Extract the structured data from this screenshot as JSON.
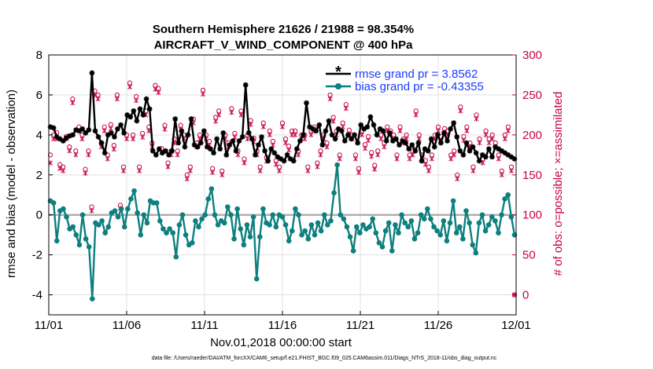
{
  "chart_data": {
    "type": "line",
    "title": "Southern Hemisphere 21626 / 21988 = 98.354%",
    "subtitle": "AIRCRAFT_V_WIND_COMPONENT @ 400 hPa",
    "xlabel": "Nov.01,2018 00:00:00 start",
    "ylabel": "rmse and bias (model - observation)",
    "y2label": "# of obs: o=possible; ×=assimilated",
    "footnote": "data file: /Users/raeder/DAI/ATM_forcXX/CAM6_setup/f.e21.FHIST_BGC.f09_025.CAM6assim.011/Diags_NTrS_2018-11/obs_diag_output.nc",
    "xlim": [
      0,
      30
    ],
    "ylim": [
      -5,
      8
    ],
    "y2lim": [
      -25,
      300
    ],
    "xticks": [
      0,
      5,
      10,
      15,
      20,
      25,
      30
    ],
    "xticklabels": [
      "11/01",
      "11/06",
      "11/11",
      "11/16",
      "11/21",
      "11/26",
      "12/01"
    ],
    "yticks": [
      -4,
      -2,
      0,
      2,
      4,
      6,
      8
    ],
    "y2ticks": [
      0,
      50,
      100,
      150,
      200,
      250,
      300
    ],
    "colors": {
      "rmse": "#000000",
      "bias": "#0e7f7f",
      "obs": "#c8004a",
      "zero_line": "#b0b0b0",
      "legend_text": "#1a3dff"
    },
    "series": [
      {
        "name": "rmse grand pr = 3.8562",
        "axis": "left",
        "marker": "asterisk",
        "values": [
          4.4,
          4.35,
          3.9,
          3.8,
          3.7,
          3.85,
          3.95,
          4.0,
          4.25,
          4.2,
          4.3,
          4.1,
          4.25,
          7.1,
          4.2,
          3.9,
          3.6,
          3.1,
          4.0,
          4.1,
          3.9,
          4.3,
          4.5,
          4.1,
          5.0,
          4.9,
          5.2,
          4.7,
          5.3,
          5.0,
          5.8,
          5.3,
          3.2,
          3.0,
          3.3,
          3.1,
          3.2,
          3.0,
          3.2,
          4.8,
          3.6,
          4.2,
          3.4,
          4.0,
          4.8,
          3.5,
          3.4,
          3.6,
          4.2,
          3.4,
          3.3,
          3.1,
          3.8,
          3.3,
          4.1,
          3.0,
          3.5,
          3.7,
          3.2,
          3.7,
          3.9,
          6.5,
          4.1,
          3.8,
          3.0,
          3.5,
          3.9,
          3.2,
          2.7,
          3.3,
          3.1,
          2.9,
          2.8,
          2.7,
          3.0,
          2.8,
          2.7,
          3.3,
          3.7,
          4.0,
          5.6,
          4.4,
          4.3,
          4.2,
          4.5,
          3.5,
          4.2,
          4.7,
          4.0,
          3.8,
          4.3,
          4.2,
          3.7,
          4.0,
          3.8,
          4.0,
          3.6,
          4.5,
          4.3,
          4.4,
          4.9,
          4.5,
          4.0,
          4.3,
          4.2,
          3.7,
          4.1,
          3.7,
          3.8,
          3.5,
          3.7,
          3.6,
          3.3,
          3.5,
          3.2,
          3.6,
          2.7,
          3.3,
          3.2,
          3.8,
          3.4,
          4.0,
          3.6,
          4.1,
          3.7,
          4.3,
          4.6,
          3.9,
          3.2,
          3.0,
          3.6,
          3.2,
          3.4,
          3.1,
          2.7,
          3.0,
          2.9,
          3.3,
          2.9,
          3.4,
          3.3,
          3.2,
          3.1,
          3.0,
          2.9,
          2.8
        ]
      },
      {
        "name": "bias grand pr = -0.43355",
        "axis": "left",
        "marker": "circle",
        "values": [
          0.7,
          0.6,
          -1.3,
          0.2,
          0.3,
          -0.1,
          -0.7,
          -0.6,
          -1.0,
          -1.5,
          0.0,
          -1.2,
          -1.6,
          -4.2,
          -0.4,
          -0.5,
          -0.3,
          -0.9,
          -0.6,
          0.1,
          0.2,
          -0.1,
          0.3,
          -0.6,
          0.3,
          0.8,
          1.2,
          0.1,
          -1.0,
          0.0,
          -0.4,
          0.7,
          0.6,
          0.6,
          -0.3,
          -0.7,
          -0.9,
          -0.7,
          -0.9,
          -2.1,
          -0.5,
          0.0,
          -1.0,
          -1.5,
          -1.4,
          -0.3,
          -0.6,
          -0.2,
          0.0,
          0.8,
          1.3,
          0.0,
          -0.5,
          -0.3,
          -0.4,
          0.4,
          0.0,
          -1.2,
          0.3,
          -0.7,
          -1.5,
          -0.5,
          -1.1,
          -0.1,
          -3.2,
          -1.1,
          0.3,
          -0.4,
          -0.5,
          0.0,
          -0.6,
          0.0,
          -0.1,
          -0.5,
          -1.3,
          -0.8,
          0.3,
          0.0,
          -1.0,
          -0.8,
          -1.2,
          -0.5,
          -1.0,
          -0.4,
          -0.8,
          0.0,
          -0.5,
          -0.3,
          1.1,
          2.5,
          0.0,
          -0.2,
          -0.6,
          -1.1,
          -1.8,
          -0.6,
          -0.9,
          -0.5,
          -0.7,
          -0.6,
          -0.2,
          -0.9,
          -1.4,
          -1.6,
          -0.8,
          -0.4,
          -1.8,
          -0.5,
          -0.9,
          0.0,
          -0.4,
          -0.6,
          -0.3,
          -1.2,
          -0.9,
          0.0,
          -0.2,
          0.3,
          -0.2,
          -0.6,
          -0.8,
          -1.0,
          -0.3,
          -1.3,
          -0.4,
          0.7,
          -0.9,
          -0.6,
          -1.2,
          0.2,
          -0.4,
          -1.5,
          -1.9,
          -0.4,
          0.0,
          -0.8,
          -0.5,
          -0.1,
          -0.3,
          -0.9,
          0.0,
          0.8,
          1.0,
          -0.1,
          -1.0
        ]
      },
      {
        "name": "possible",
        "axis": "right",
        "marker": "o",
        "values": [
          175,
          200,
          203,
          163,
          160,
          198,
          185,
          245,
          180,
          210,
          200,
          157,
          180,
          110,
          255,
          250,
          190,
          210,
          175,
          213,
          187,
          250,
          112,
          160,
          200,
          265,
          200,
          248,
          160,
          202,
          230,
          210,
          190,
          262,
          258,
          183,
          212,
          165,
          180,
          195,
          180,
          212,
          200,
          150,
          160,
          220,
          190,
          200,
          256,
          200,
          192,
          158,
          222,
          230,
          155,
          200,
          190,
          233,
          202,
          180,
          230,
          170,
          200,
          218,
          196,
          180,
          160,
          215,
          172,
          205,
          192,
          168,
          160,
          215,
          195,
          186,
          205,
          205,
          180,
          200,
          200,
          160,
          205,
          210,
          165,
          180,
          200,
          190,
          250,
          222,
          205,
          175,
          215,
          238,
          206,
          200,
          175,
          158,
          205,
          188,
          198,
          178,
          162,
          180,
          200,
          190,
          210,
          205,
          200,
          175,
          210,
          195,
          200,
          175,
          180,
          230,
          200,
          175,
          168,
          160,
          175,
          200,
          210,
          198,
          208,
          205,
          175,
          180,
          150,
          235,
          198,
          210,
          190,
          160,
          225,
          195,
          170,
          205,
          195,
          200,
          190,
          175,
          155,
          200,
          210,
          160,
          0
        ]
      },
      {
        "name": "assimilated",
        "axis": "right",
        "marker": "x",
        "values": [
          165,
          195,
          195,
          158,
          155,
          195,
          180,
          240,
          175,
          205,
          195,
          152,
          175,
          105,
          250,
          245,
          185,
          205,
          170,
          208,
          182,
          245,
          108,
          155,
          195,
          260,
          195,
          243,
          155,
          197,
          225,
          205,
          185,
          257,
          253,
          178,
          207,
          160,
          175,
          190,
          175,
          207,
          195,
          145,
          155,
          215,
          185,
          195,
          251,
          195,
          187,
          153,
          217,
          225,
          150,
          195,
          185,
          228,
          197,
          175,
          225,
          165,
          195,
          213,
          191,
          175,
          155,
          210,
          167,
          200,
          187,
          163,
          155,
          210,
          190,
          181,
          200,
          200,
          175,
          195,
          195,
          155,
          200,
          205,
          160,
          175,
          195,
          185,
          245,
          217,
          200,
          170,
          210,
          233,
          201,
          195,
          170,
          153,
          200,
          183,
          193,
          173,
          157,
          175,
          195,
          185,
          205,
          200,
          195,
          170,
          205,
          190,
          195,
          170,
          175,
          225,
          195,
          170,
          163,
          155,
          170,
          195,
          205,
          193,
          203,
          200,
          170,
          175,
          145,
          230,
          193,
          205,
          185,
          155,
          220,
          190,
          165,
          200,
          190,
          195,
          185,
          170,
          150,
          195,
          205,
          155,
          0
        ]
      }
    ],
    "legend": [
      "rmse grand pr = 3.8562",
      "bias grand pr = -0.43355"
    ],
    "legend_location": "top-right"
  }
}
